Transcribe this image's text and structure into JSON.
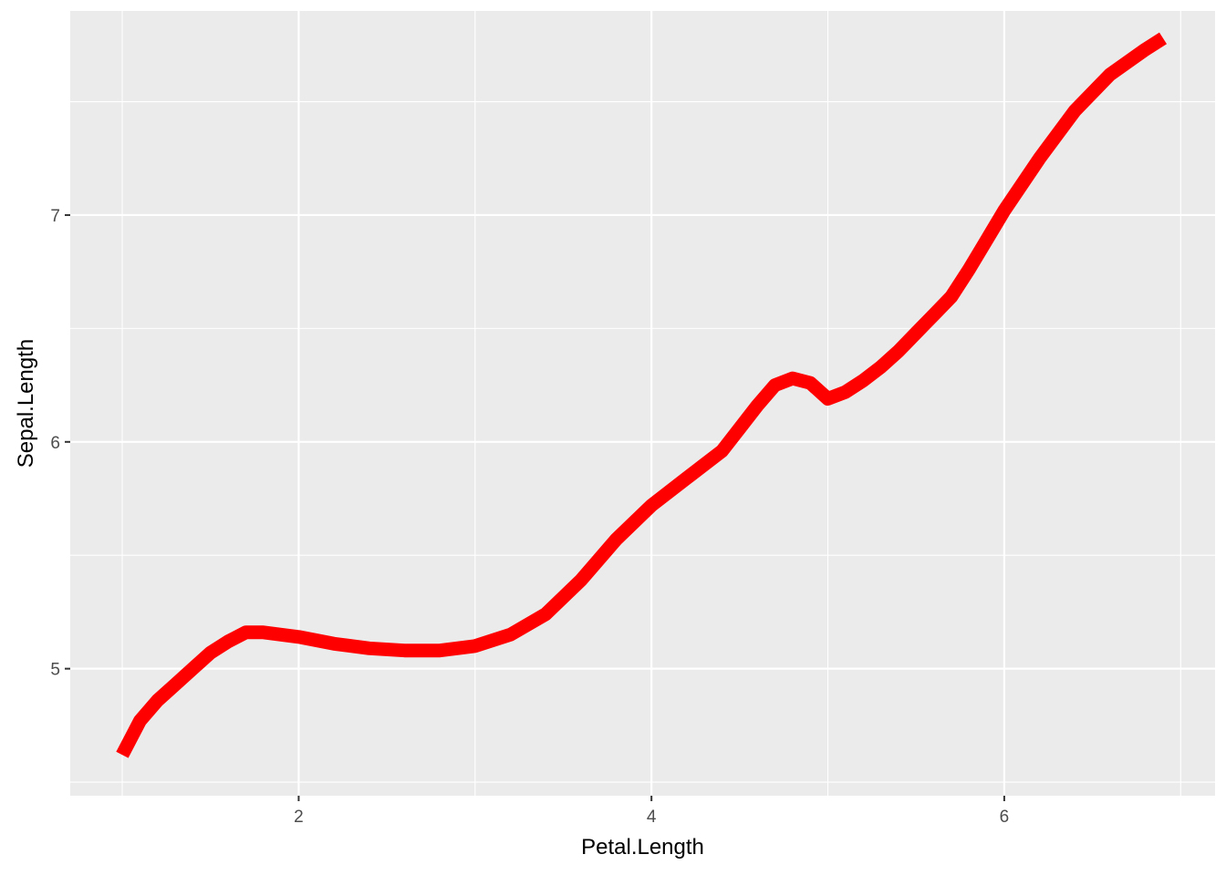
{
  "chart_data": {
    "type": "line",
    "title": "",
    "xlabel": "Petal.Length",
    "ylabel": "Sepal.Length",
    "xlim": [
      0.705,
      7.195
    ],
    "ylim": [
      4.44,
      7.9
    ],
    "x_ticks": [
      2,
      4,
      6
    ],
    "y_ticks": [
      5,
      6,
      7
    ],
    "x_tick_labels": [
      "2",
      "4",
      "6"
    ],
    "y_tick_labels": [
      "5",
      "6",
      "7"
    ],
    "grid": true,
    "legend": "none",
    "series": [
      {
        "color": "#ff0000",
        "x": [
          1.0,
          1.1,
          1.2,
          1.3,
          1.4,
          1.5,
          1.6,
          1.7,
          1.8,
          2.0,
          2.2,
          2.4,
          2.6,
          2.8,
          3.0,
          3.2,
          3.4,
          3.6,
          3.8,
          4.0,
          4.2,
          4.4,
          4.5,
          4.6,
          4.7,
          4.8,
          4.9,
          5.0,
          5.1,
          5.2,
          5.3,
          5.4,
          5.5,
          5.6,
          5.7,
          5.8,
          5.9,
          6.0,
          6.2,
          6.4,
          6.6,
          6.8,
          6.9
        ],
        "y": [
          4.62,
          4.77,
          4.86,
          4.93,
          5.0,
          5.07,
          5.12,
          5.16,
          5.16,
          5.14,
          5.11,
          5.09,
          5.08,
          5.08,
          5.1,
          5.15,
          5.24,
          5.39,
          5.57,
          5.72,
          5.84,
          5.96,
          6.06,
          6.16,
          6.25,
          6.28,
          6.26,
          6.19,
          6.22,
          6.27,
          6.33,
          6.4,
          6.48,
          6.56,
          6.64,
          6.76,
          6.89,
          7.02,
          7.25,
          7.46,
          7.62,
          7.73,
          7.78
        ]
      }
    ]
  }
}
